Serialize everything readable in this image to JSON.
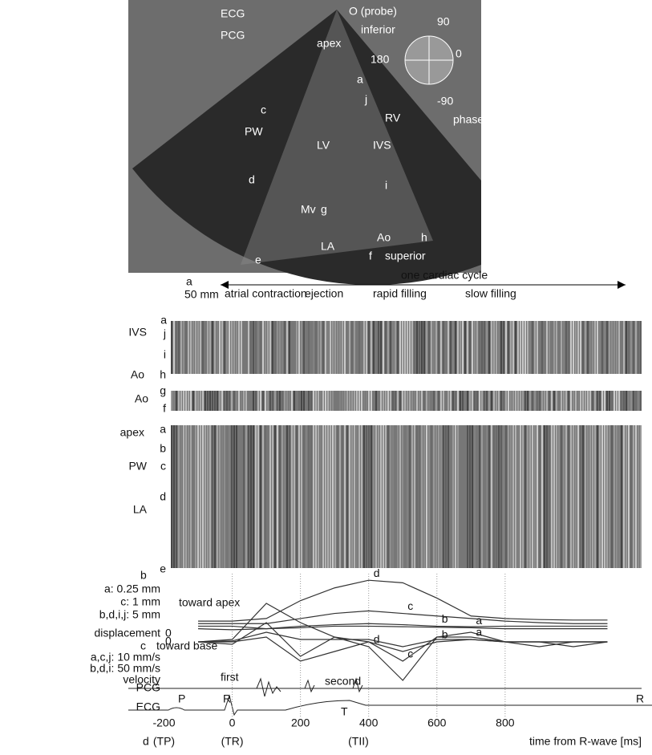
{
  "echo_image": {
    "labels": [
      "ECG",
      "PCG",
      "O (probe)",
      "inferior",
      "apex",
      "a",
      "c",
      "j",
      "RV",
      "PW",
      "LV",
      "IVS",
      "d",
      "i",
      "Mv",
      "g",
      "LA",
      "Ao",
      "h",
      "e",
      "f",
      "superior"
    ],
    "phase_labels": [
      "90",
      "180",
      "0",
      "-90",
      "phase"
    ]
  },
  "top_annotations": {
    "panel_letter": "a",
    "scale": "50 mm",
    "cycle": "one cardiac cycle",
    "events": [
      "atrial contraction",
      "ejection",
      "rapid filling",
      "slow filling"
    ]
  },
  "mmode": {
    "labels": [
      "a",
      "IVS",
      "j",
      "i",
      "Ao",
      "h",
      "g",
      "Ao",
      "f",
      "apex",
      "a",
      "b",
      "PW",
      "c",
      "d",
      "LA",
      "e"
    ]
  },
  "displacement": {
    "panel_letter": "b",
    "scales": [
      "a: 0.25 mm",
      "c: 1 mm",
      "b,d,i,j: 5 mm"
    ],
    "ylabel": "displacement",
    "zero": "0",
    "direction": "toward apex",
    "ylim": [
      -0.1,
      1
    ],
    "x": [
      -100,
      0,
      100,
      200,
      300,
      400,
      500,
      600,
      700,
      800,
      900,
      1000,
      1100
    ],
    "series": [
      {
        "name": "d",
        "values": [
          0.15,
          0.15,
          0.2,
          0.55,
          0.8,
          0.95,
          0.9,
          0.6,
          0.25,
          0.2,
          0.18,
          0.17,
          0.17
        ]
      },
      {
        "name": "c",
        "values": [
          0.1,
          0.1,
          0.1,
          0.2,
          0.3,
          0.35,
          0.3,
          0.25,
          0.2,
          0.15,
          0.12,
          0.1,
          0.1
        ]
      },
      {
        "name": "b",
        "values": [
          0.05,
          0.05,
          0.0,
          0.05,
          0.08,
          0.1,
          0.08,
          0.05,
          0.04,
          0.05,
          0.05,
          0.05,
          0.05
        ]
      },
      {
        "name": "a",
        "values": [
          0.0,
          -0.02,
          0.0,
          0.02,
          0.05,
          0.05,
          0.04,
          0.03,
          0.02,
          0.0,
          0.0,
          0.0,
          0.0
        ]
      }
    ]
  },
  "velocity": {
    "panel_letter": "c",
    "scales": [
      "a,c,j: 10 mm/s",
      "b,d,i: 50 mm/s"
    ],
    "ylabel": "velocity",
    "zero": "0",
    "direction": "toward base",
    "ylim": [
      -1,
      1
    ],
    "x": [
      -100,
      0,
      100,
      200,
      300,
      400,
      500,
      600,
      700,
      800,
      900,
      1000,
      1100
    ],
    "series": [
      {
        "name": "d",
        "values": [
          0,
          0.05,
          0.8,
          0.4,
          0.1,
          -0.1,
          -0.8,
          0.1,
          0.2,
          0,
          -0.1,
          0,
          0
        ]
      },
      {
        "name": "c",
        "values": [
          0,
          -0.05,
          0.4,
          -0.3,
          0.1,
          0,
          -0.4,
          0.1,
          0.1,
          0,
          0,
          -0.1,
          0
        ]
      },
      {
        "name": "b",
        "values": [
          0,
          0,
          0.1,
          -0.4,
          -0.2,
          0,
          -0.2,
          0,
          0.05,
          0,
          0,
          0,
          0
        ]
      },
      {
        "name": "a",
        "values": [
          0,
          0.02,
          0.2,
          0.05,
          0.05,
          0.05,
          -0.1,
          0.05,
          0.05,
          0,
          0,
          0,
          0
        ]
      }
    ]
  },
  "signals": {
    "pcg": "PCG",
    "ecg": "ECG",
    "annotations": [
      "first",
      "second",
      "P",
      "R",
      "R",
      "T"
    ]
  },
  "time_axis": {
    "panel_letter": "d",
    "label": "time from R-wave [ms]",
    "xlim": [
      -180,
      1200
    ],
    "xticks": [
      -200,
      0,
      200,
      400,
      600,
      800
    ],
    "markers": [
      "(TP)",
      "(TR)",
      "(TII)"
    ]
  }
}
